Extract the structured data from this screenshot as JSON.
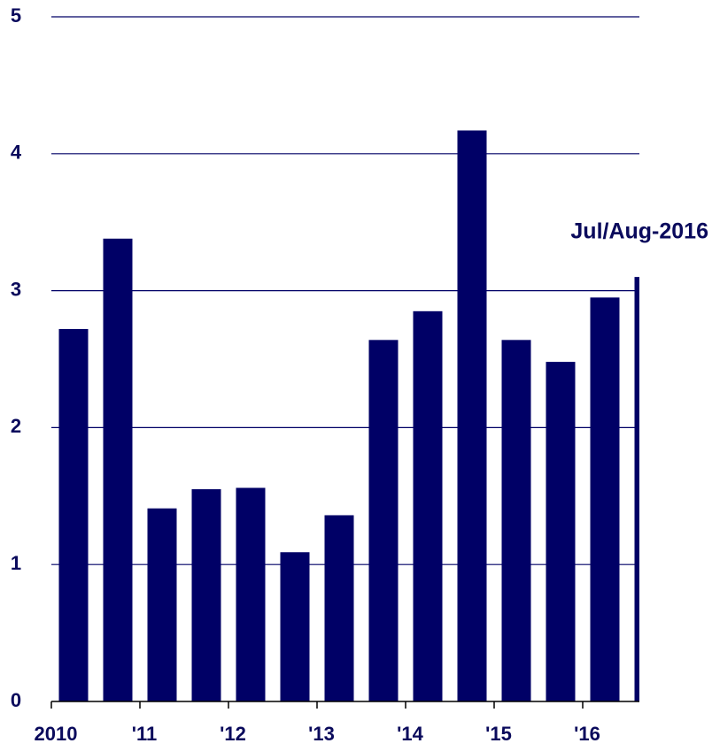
{
  "chart_data": {
    "type": "bar",
    "x": [
      2010.25,
      2010.75,
      2011.25,
      2011.75,
      2012.25,
      2012.75,
      2013.25,
      2013.75,
      2014.25,
      2014.75,
      2015.25,
      2015.75,
      2016.25,
      2016.75
    ],
    "values": [
      2.72,
      3.38,
      1.41,
      1.55,
      1.56,
      1.09,
      1.36,
      2.64,
      2.85,
      4.17,
      2.64,
      2.48,
      2.95,
      3.1
    ],
    "color": "#000066",
    "xlim": [
      2010,
      2016.64
    ],
    "xticks": [
      {
        "value": 2010,
        "label": "2010"
      },
      {
        "value": 2011,
        "label": "'11"
      },
      {
        "value": 2012,
        "label": "'12"
      },
      {
        "value": 2013,
        "label": "'13"
      },
      {
        "value": 2014,
        "label": "'14"
      },
      {
        "value": 2015,
        "label": "'15"
      },
      {
        "value": 2016,
        "label": "'16"
      }
    ],
    "ylim": [
      0,
      5
    ],
    "yticks": [
      0,
      1,
      2,
      3,
      4,
      5
    ],
    "grid": true,
    "annotation": "Jul/Aug-2016"
  }
}
